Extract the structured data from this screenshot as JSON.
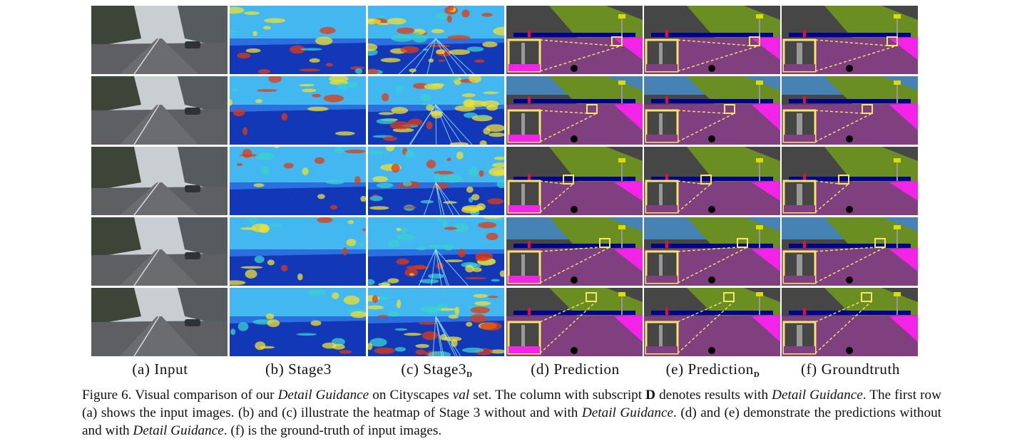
{
  "figure": {
    "columns": [
      {
        "id": "input",
        "label": "(a) Input",
        "subscript": ""
      },
      {
        "id": "stage3",
        "label": "(b) Stage3",
        "subscript": ""
      },
      {
        "id": "stage3d",
        "label": "(c) Stage3",
        "subscript": "D"
      },
      {
        "id": "prediction",
        "label": "(d) Prediction",
        "subscript": ""
      },
      {
        "id": "predictiond",
        "label": "(e) Prediction",
        "subscript": "D"
      },
      {
        "id": "groundtruth",
        "label": "(f) Groundtruth",
        "subscript": ""
      }
    ],
    "rows": 5,
    "caption": {
      "p1": "Figure 6. Visual comparison of our ",
      "e1": "Detail Guidance",
      "p2": " on Cityscapes ",
      "e2": "val",
      "p3": " set.  The column with subscript ",
      "b1": "D",
      "p4": " denotes results with ",
      "e3": "Detail Guidance",
      "p5": ".  The first row (a) shows the input images. (b) and (c) illustrate the heatmap of Stage 3 without and with ",
      "e4": "Detail Guidance",
      "p6": ". (d) and (e) demonstrate the predictions without and with ",
      "e5": "Detail Guidance",
      "p7": ". (f) is the ground-truth of input images."
    },
    "colors": {
      "road": "#804080",
      "sidewalk": "#f423e8",
      "building": "#464646",
      "vegetation": "#6b8e23",
      "sky": "#4682b4",
      "car": "#00008e",
      "person": "#dc143c",
      "pole": "#999999",
      "sign": "#dcdc00",
      "terrain": "#98fb98",
      "wall": "#bc8f8f",
      "highlight": "#f5e66b"
    }
  }
}
